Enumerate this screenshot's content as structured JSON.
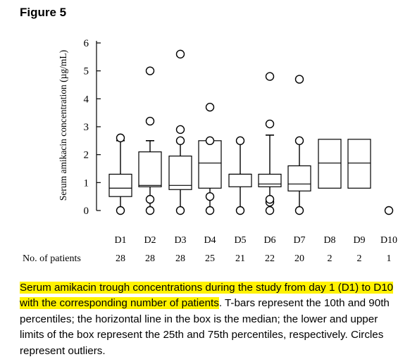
{
  "figure_label": "Figure 5",
  "caption": {
    "highlighted": "Serum amikacin trough concentrations during the study from day 1 (D1) to D10 with the corresponding number of patients",
    "rest": ". T-bars represent the 10th and 90th percentiles; the horizontal line in the box is the median; the lower and upper limits of the box represent the 25th and 75th percentiles, respectively. Circles represent outliers."
  },
  "chart_data": {
    "type": "box",
    "ylabel": "Serum amikacin concentration (µg/mL)",
    "ylim": [
      0,
      6
    ],
    "yticks": [
      "0",
      "1",
      "2",
      "3",
      "4",
      "5",
      "6"
    ],
    "categories": [
      "D1",
      "D2",
      "D3",
      "D4",
      "D5",
      "D6",
      "D7",
      "D8",
      "D9",
      "D10"
    ],
    "patients_label": "No. of patients",
    "patients": [
      "28",
      "28",
      "28",
      "25",
      "21",
      "22",
      "20",
      "2",
      "2",
      "1"
    ],
    "boxes": [
      {
        "day": "D1",
        "whisker_low": 0,
        "q1": 0.5,
        "median": 0.8,
        "q3": 1.3,
        "whisker_high": 2.5,
        "outliers": [
          0,
          2.6
        ]
      },
      {
        "day": "D2",
        "whisker_low": 0,
        "q1": 0.85,
        "median": 0.9,
        "q3": 2.1,
        "whisker_high": 2.5,
        "outliers": [
          0,
          0.4,
          3.2,
          5.0
        ]
      },
      {
        "day": "D3",
        "whisker_low": 0,
        "q1": 0.75,
        "median": 0.9,
        "q3": 1.95,
        "whisker_high": 2.5,
        "outliers": [
          0,
          2.5,
          2.9,
          5.6
        ]
      },
      {
        "day": "D4",
        "whisker_low": 0,
        "q1": 0.8,
        "median": 1.7,
        "q3": 2.5,
        "whisker_high": 2.5,
        "outliers": [
          0,
          0.5,
          2.5,
          3.7
        ]
      },
      {
        "day": "D5",
        "whisker_low": 0,
        "q1": 0.85,
        "median": 1.3,
        "q3": 1.3,
        "whisker_high": 2.5,
        "outliers": [
          0,
          2.5
        ]
      },
      {
        "day": "D6",
        "whisker_low": 0,
        "q1": 0.85,
        "median": 0.95,
        "q3": 1.3,
        "whisker_high": 2.7,
        "outliers": [
          0,
          0.3,
          0.4,
          3.1,
          4.8
        ]
      },
      {
        "day": "D7",
        "whisker_low": 0,
        "q1": 0.7,
        "median": 0.95,
        "q3": 1.6,
        "whisker_high": 2.5,
        "outliers": [
          0,
          2.5,
          4.7
        ]
      },
      {
        "day": "D8",
        "whisker_low": null,
        "q1": 0.8,
        "median": 1.7,
        "q3": 2.55,
        "whisker_high": null,
        "outliers": []
      },
      {
        "day": "D9",
        "whisker_low": null,
        "q1": 0.8,
        "median": 1.7,
        "q3": 2.55,
        "whisker_high": null,
        "outliers": []
      },
      {
        "day": "D10",
        "whisker_low": null,
        "q1": null,
        "median": null,
        "q3": null,
        "whisker_high": null,
        "outliers": [
          0
        ]
      }
    ]
  }
}
